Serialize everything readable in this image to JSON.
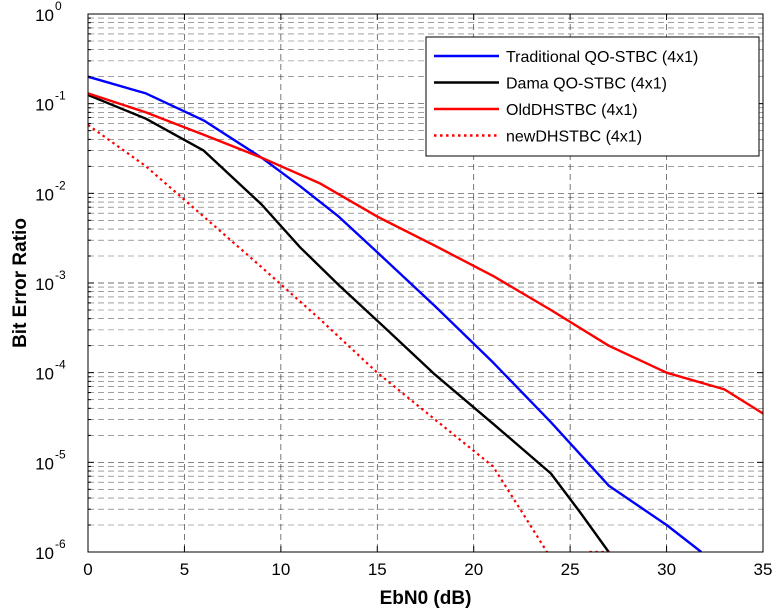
{
  "chart_data": {
    "type": "line",
    "title": "",
    "xlabel": "EbN0 (dB)",
    "ylabel": "Bit Error Ratio",
    "xlim": [
      0,
      35
    ],
    "ylim": [
      1e-06,
      1
    ],
    "yscale": "log",
    "grid": true,
    "legend_position": "top-right",
    "x_ticks": [
      {
        "value": 0,
        "label": "0"
      },
      {
        "value": 5,
        "label": "5"
      },
      {
        "value": 10,
        "label": "10"
      },
      {
        "value": 15,
        "label": "15"
      },
      {
        "value": 20,
        "label": "20"
      },
      {
        "value": 25,
        "label": "25"
      },
      {
        "value": 30,
        "label": "30"
      },
      {
        "value": 35,
        "label": "35"
      }
    ],
    "y_ticks": [
      {
        "value": 1e-06,
        "base": "10",
        "exp": "-6"
      },
      {
        "value": 1e-05,
        "base": "10",
        "exp": "-5"
      },
      {
        "value": 0.0001,
        "base": "10",
        "exp": "-4"
      },
      {
        "value": 0.001,
        "base": "10",
        "exp": "-3"
      },
      {
        "value": 0.01,
        "base": "10",
        "exp": "-2"
      },
      {
        "value": 0.1,
        "base": "10",
        "exp": "-1"
      },
      {
        "value": 1,
        "base": "10",
        "exp": "0"
      }
    ],
    "series": [
      {
        "name": "Traditional QO-STBC (4x1)",
        "color": "#0000ff",
        "style": "solid",
        "x": [
          0,
          3,
          6,
          9,
          11,
          13,
          15,
          18,
          21,
          24,
          27,
          30,
          31.8
        ],
        "y": [
          0.2,
          0.13,
          0.065,
          0.025,
          0.012,
          0.0055,
          0.0022,
          0.00055,
          0.00013,
          2.8e-05,
          5.5e-06,
          2e-06,
          1e-06
        ]
      },
      {
        "name": "Dama QO-STBC (4x1)",
        "color": "#000000",
        "style": "solid",
        "x": [
          0,
          3,
          6,
          9,
          11,
          13,
          15,
          18,
          21,
          24,
          25.5,
          27
        ],
        "y": [
          0.125,
          0.068,
          0.03,
          0.0075,
          0.0025,
          0.00095,
          0.00038,
          9.5e-05,
          2.7e-05,
          7.5e-06,
          2.8e-06,
          1e-06
        ]
      },
      {
        "name": "OldDHSTBC (4x1)",
        "color": "#ff0000",
        "style": "solid",
        "x": [
          0,
          3,
          6,
          9,
          12,
          15,
          18,
          21,
          24,
          27,
          30,
          33,
          35
        ],
        "y": [
          0.13,
          0.08,
          0.045,
          0.025,
          0.013,
          0.0055,
          0.0026,
          0.0012,
          0.0005,
          0.0002,
          0.0001,
          6.5e-05,
          3.5e-05
        ]
      },
      {
        "name": "newDHSTBC (4x1)",
        "color": "#ff0000",
        "style": "dotted",
        "x": [
          0,
          3,
          6,
          9,
          12,
          15,
          18,
          21,
          22.5,
          23.8
        ],
        "y": [
          0.058,
          0.02,
          0.0055,
          0.0015,
          0.0004,
          0.0001,
          3e-05,
          9e-06,
          2.8e-06,
          1e-06
        ]
      },
      {
        "name": "",
        "color": "#ff0000",
        "style": "dotted",
        "x": [
          26,
          27
        ],
        "y": [
          1e-06,
          1e-06
        ]
      }
    ]
  }
}
